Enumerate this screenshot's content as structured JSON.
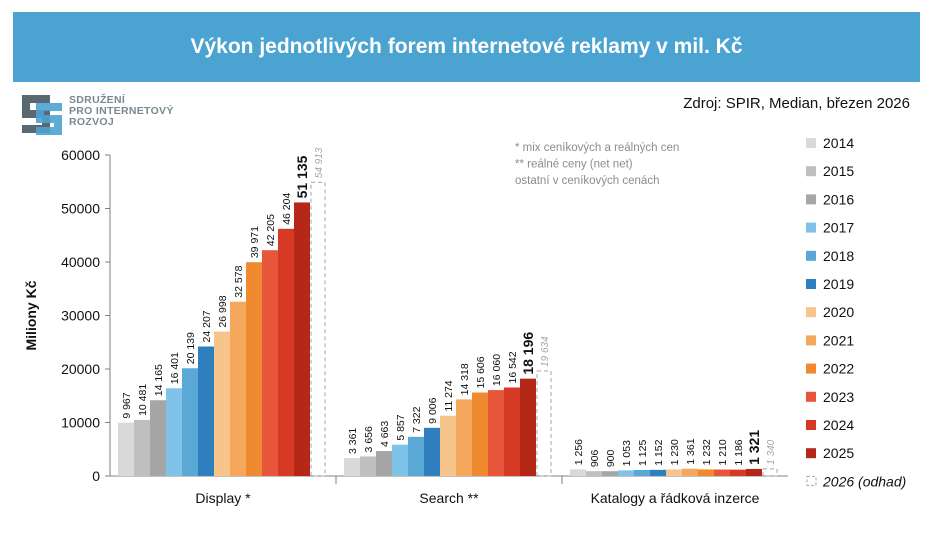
{
  "title": "Výkon jednotlivých forem internetové reklamy v mil. Kč",
  "source": "Zdroj: SPIR, Median, březen 2026",
  "logo": {
    "lines": [
      "SDRUŽENÍ",
      "PRO INTERNETOVÝ",
      "ROZVOJ"
    ]
  },
  "notes": [
    "* mix ceníkových a reálných cen",
    "** reálné ceny (net net)",
    "ostatní v ceníkových cenách"
  ],
  "colors": {
    "2014": "#d9d9d9",
    "2015": "#bfbfbf",
    "2016": "#a6a6a6",
    "2017": "#7fc4e8",
    "2018": "#5aa8d6",
    "2019": "#2f7fbf",
    "2020": "#f7c58c",
    "2021": "#f5a85c",
    "2022": "#ef8a30",
    "2023": "#e8563a",
    "2024": "#d63a25",
    "2025": "#b52818",
    "axis": "#808080",
    "estimate": "#a6a6a6"
  },
  "chart_data": {
    "type": "bar",
    "title": "Výkon jednotlivých forem internetové reklamy v mil. Kč",
    "xlabel": "",
    "ylabel": "Miliony Kč",
    "ylim": [
      0,
      60000
    ],
    "yticks": [
      "0",
      "10000",
      "20000",
      "30000",
      "40000",
      "50000",
      "60000"
    ],
    "categories": [
      "Display *",
      "Search **",
      "Katalogy a řádková inzerce"
    ],
    "series": [
      {
        "name": "2014",
        "values": [
          9967,
          3361,
          1256
        ],
        "labels": [
          "9 967",
          "3 361",
          "1 256"
        ]
      },
      {
        "name": "2015",
        "values": [
          10481,
          3656,
          906
        ],
        "labels": [
          "10 481",
          "3 656",
          "906"
        ]
      },
      {
        "name": "2016",
        "values": [
          14165,
          4663,
          900
        ],
        "labels": [
          "14 165",
          "4 663",
          "900"
        ]
      },
      {
        "name": "2017",
        "values": [
          16401,
          5857,
          1053
        ],
        "labels": [
          "16 401",
          "5 857",
          "1 053"
        ]
      },
      {
        "name": "2018",
        "values": [
          20139,
          7322,
          1125
        ],
        "labels": [
          "20 139",
          "7 322",
          "1 125"
        ]
      },
      {
        "name": "2019",
        "values": [
          24207,
          9006,
          1152
        ],
        "labels": [
          "24 207",
          "9 006",
          "1 152"
        ]
      },
      {
        "name": "2020",
        "values": [
          26998,
          11274,
          1230
        ],
        "labels": [
          "26 998",
          "11 274",
          "1 230"
        ]
      },
      {
        "name": "2021",
        "values": [
          32578,
          14318,
          1361
        ],
        "labels": [
          "32 578",
          "14 318",
          "1 361"
        ]
      },
      {
        "name": "2022",
        "values": [
          39971,
          15606,
          1232
        ],
        "labels": [
          "39 971",
          "15 606",
          "1 232"
        ]
      },
      {
        "name": "2023",
        "values": [
          42205,
          16060,
          1210
        ],
        "labels": [
          "42 205",
          "16 060",
          "1 210"
        ]
      },
      {
        "name": "2024",
        "values": [
          46204,
          16542,
          1186
        ],
        "labels": [
          "46 204",
          "16 542",
          "1 186"
        ]
      },
      {
        "name": "2025",
        "values": [
          51135,
          18196,
          1321
        ],
        "labels": [
          "51 135",
          "18 196",
          "1 321"
        ]
      },
      {
        "name": "2026 (odhad)",
        "estimate": true,
        "values": [
          54913,
          19634,
          1340
        ],
        "labels": [
          "54 913",
          "19 634",
          "1 340"
        ]
      }
    ],
    "legend": [
      "2014",
      "2015",
      "2016",
      "2017",
      "2018",
      "2019",
      "2020",
      "2021",
      "2022",
      "2023",
      "2024",
      "2025",
      "2026 (odhad)"
    ],
    "legend_position": "right"
  }
}
